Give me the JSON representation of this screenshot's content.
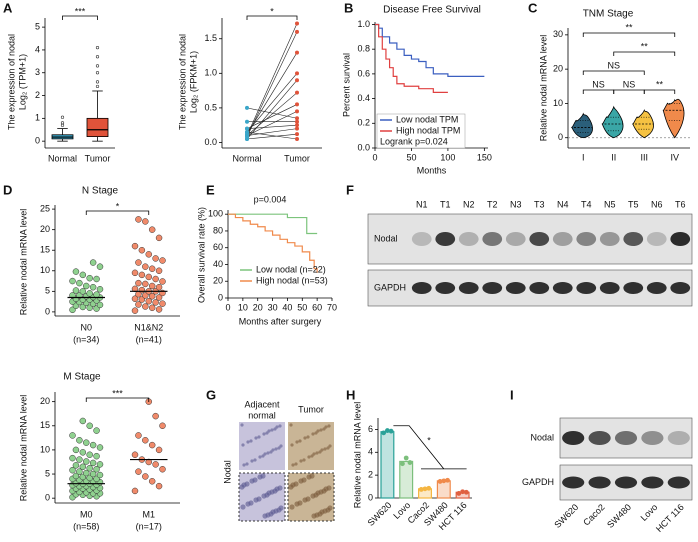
{
  "chart_data": [
    {
      "type": "box",
      "label": "A",
      "ylabel": [
        "The expression of nodal",
        "Log₂ (TPM+1)"
      ],
      "categories": [
        "Normal",
        "Tumor"
      ],
      "colors": [
        "#3aa6c9",
        "#e0533a"
      ],
      "boxes": [
        {
          "min": 0,
          "q1": 0.1,
          "median": 0.18,
          "q3": 0.28,
          "max": 0.55
        },
        {
          "min": 0,
          "q1": 0.2,
          "median": 0.5,
          "q3": 1.0,
          "max": 2.2
        }
      ],
      "outliers": [
        [
          0.7,
          0.8,
          1.05
        ],
        [
          2.4,
          2.6,
          3.0,
          3.3,
          3.7,
          4.1
        ]
      ],
      "ylim": [
        -0.3,
        5.4
      ],
      "yticks": [
        0,
        1,
        2,
        3,
        4,
        5
      ],
      "significance": "***"
    },
    {
      "type": "paired",
      "ylabel": [
        "The expression of nodal",
        "Log₂ (FPKM+1)"
      ],
      "categories": [
        "Normal",
        "Tumor"
      ],
      "colors": [
        "#3aa6c9",
        "#e0533a"
      ],
      "normal": [
        0.1,
        0.08,
        0.12,
        0.15,
        0.05,
        0.1,
        0.2,
        0.5,
        0.3,
        0.1,
        0.05,
        0.15,
        0.2,
        0.1
      ],
      "tumor": [
        1.72,
        1.6,
        1.3,
        1.0,
        0.9,
        0.72,
        0.55,
        0.35,
        0.3,
        0.2,
        0.12,
        0.05,
        0.25,
        0.45
      ],
      "ylim": [
        -0.08,
        1.8
      ],
      "yticks": [
        {
          "value": 0,
          "label": "0.0"
        },
        {
          "value": 0.5,
          "label": "0.5"
        },
        {
          "value": 1,
          "label": "1.0"
        },
        {
          "value": 1.5,
          "label": "1.5"
        }
      ],
      "significance": "*"
    },
    {
      "type": "survival",
      "label": "B",
      "title": "Disease Free Survival",
      "ylabel": "Percent survival",
      "xlabel": "Months",
      "xlim": [
        0,
        155
      ],
      "ylim": [
        0,
        1.02
      ],
      "xticks": [
        0,
        50,
        100,
        150
      ],
      "yticks": [
        {
          "value": 0,
          "label": "0.0"
        },
        {
          "value": 0.2,
          "label": "0.2"
        },
        {
          "value": 0.4,
          "label": "0.4"
        },
        {
          "value": 0.6,
          "label": "0.6"
        },
        {
          "value": 0.8,
          "label": "0.8"
        },
        {
          "value": 1,
          "label": "1.0"
        }
      ],
      "series": [
        {
          "name": "Low nodal TPM",
          "color": "#3b5fc0",
          "x": [
            0,
            5,
            10,
            20,
            30,
            40,
            50,
            60,
            70,
            80,
            100,
            150
          ],
          "values": [
            1,
            0.97,
            0.9,
            0.85,
            0.8,
            0.75,
            0.72,
            0.7,
            0.65,
            0.6,
            0.58,
            0.58
          ]
        },
        {
          "name": "High nodal TPM",
          "color": "#e04040",
          "x": [
            0,
            5,
            10,
            15,
            20,
            25,
            30,
            40,
            60,
            80,
            100
          ],
          "values": [
            1,
            0.9,
            0.8,
            0.72,
            0.65,
            0.58,
            0.52,
            0.5,
            0.48,
            0.45,
            0.45
          ]
        }
      ],
      "annotation": "Logrank p=0.024"
    },
    {
      "type": "violin",
      "label": "C",
      "title": "TNM Stage",
      "ylabel": "Relative nodal mRNA level",
      "categories": [
        "I",
        "II",
        "III",
        "IV"
      ],
      "colors": [
        "#2b5f7a",
        "#3aa6a6",
        "#f5c242",
        "#f08a4b"
      ],
      "stats": [
        {
          "min": 0,
          "q1": 1.5,
          "median": 3,
          "q3": 5,
          "max": 7
        },
        {
          "min": 0,
          "q1": 2,
          "median": 4,
          "q3": 6,
          "max": 9
        },
        {
          "min": 0,
          "q1": 2.5,
          "median": 4,
          "q3": 6,
          "max": 8
        },
        {
          "min": 0,
          "q1": 5,
          "median": 8,
          "q3": 10,
          "max": 11
        }
      ],
      "ylim": [
        -3,
        32
      ],
      "yticks": [
        0,
        10,
        20,
        30
      ],
      "comparisons": [
        {
          "between": [
            0,
            1
          ],
          "label": "NS"
        },
        {
          "between": [
            1,
            2
          ],
          "label": "NS"
        },
        {
          "between": [
            0,
            2
          ],
          "label": "NS"
        },
        {
          "between": [
            2,
            3
          ],
          "label": "**"
        },
        {
          "between": [
            1,
            3
          ],
          "label": "**"
        },
        {
          "between": [
            0,
            3
          ],
          "label": "**"
        }
      ]
    },
    {
      "type": "strip",
      "label": "D",
      "title": "N Stage",
      "ylabel": "Relative nodal mRNA level",
      "categories": [
        "N0",
        "N1&N2"
      ],
      "sublabels": [
        "(n=34)",
        "(n=41)"
      ],
      "colors": [
        "#8fd18f",
        "#f08a6a"
      ],
      "values": [
        [
          0.5,
          0.8,
          1,
          1.2,
          1.5,
          1.7,
          2,
          2.2,
          2.4,
          2.5,
          2.8,
          3,
          3,
          3.2,
          3.5,
          3.6,
          3.8,
          4,
          4,
          4.2,
          4.5,
          5,
          5.2,
          5.5,
          6,
          6.3,
          7,
          7.5,
          8,
          8.2,
          9,
          9.8,
          11,
          12
        ],
        [
          0.3,
          0.6,
          1,
          1.3,
          1.8,
          2,
          2.3,
          2.6,
          3,
          3.2,
          3.5,
          3.8,
          4,
          4.3,
          4.6,
          5,
          5,
          5.3,
          5.6,
          6,
          6.3,
          6.8,
          7,
          7.4,
          8,
          8.5,
          9,
          9.5,
          10,
          10.5,
          11,
          12,
          12.5,
          13,
          14,
          15,
          16,
          18,
          20,
          22,
          22.5
        ]
      ],
      "means": [
        3.5,
        5
      ],
      "ylim": [
        -1,
        26
      ],
      "yticks": [
        0,
        5,
        10,
        15,
        20,
        25
      ],
      "significance": "*"
    },
    {
      "type": "strip",
      "title": "M Stage",
      "ylabel": "Relative nodal mRNA level",
      "categories": [
        "M0",
        "M1"
      ],
      "sublabels": [
        "(n=58)",
        "(n=17)"
      ],
      "colors": [
        "#8fd18f",
        "#f08a6a"
      ],
      "values": [
        [
          0.2,
          0.4,
          0.5,
          0.7,
          0.8,
          1,
          1,
          1.2,
          1.3,
          1.5,
          1.6,
          1.8,
          2,
          2,
          2.1,
          2.3,
          2.5,
          2.5,
          2.7,
          2.8,
          3,
          3,
          3.1,
          3.3,
          3.5,
          3.6,
          3.8,
          4,
          4,
          4.2,
          4.4,
          4.6,
          4.8,
          5,
          5.2,
          5.5,
          5.8,
          6,
          6.2,
          6.5,
          6.8,
          7,
          7.3,
          7.6,
          8,
          8.3,
          8.7,
          9,
          9.5,
          10,
          10.5,
          11,
          11.5,
          12,
          13,
          14,
          15,
          16
        ],
        [
          1.5,
          2.5,
          3.5,
          4.5,
          5.5,
          6,
          7,
          7.5,
          8,
          9,
          10,
          11,
          12,
          13,
          15,
          17,
          20
        ]
      ],
      "means": [
        3,
        8
      ],
      "ylim": [
        -1,
        22
      ],
      "yticks": [
        0,
        5,
        10,
        15,
        20
      ],
      "significance": "***"
    },
    {
      "type": "survival",
      "label": "E",
      "ylabel": "Overall survival rate (%)",
      "xlabel": "Months after surgery",
      "xlim": [
        0,
        70
      ],
      "ylim": [
        0,
        105
      ],
      "xticks": [
        0,
        10,
        20,
        30,
        40,
        50,
        60,
        70
      ],
      "yticks": [
        0,
        20,
        40,
        60,
        80,
        100
      ],
      "series": [
        {
          "name": "Low nodal (n=22)",
          "color": "#7cc47c",
          "x": [
            0,
            40,
            53,
            60
          ],
          "values": [
            100,
            96,
            77,
            77
          ]
        },
        {
          "name": "High nodal (n=53)",
          "color": "#f08a4b",
          "x": [
            0,
            5,
            10,
            15,
            20,
            25,
            30,
            35,
            40,
            45,
            50,
            55,
            58,
            60
          ],
          "values": [
            100,
            96,
            92,
            88,
            85,
            80,
            75,
            70,
            66,
            62,
            55,
            45,
            35,
            30
          ]
        }
      ],
      "annotation": "p=0.004"
    },
    {
      "type": "bar",
      "label": "H",
      "ylabel": "Relative nodal mRNA level",
      "categories": [
        "SW620",
        "Lovo",
        "Caco2",
        "SW480",
        "HCT 116"
      ],
      "colors": [
        "#2aa198",
        "#7cbf7c",
        "#f5b642",
        "#f08a4b",
        "#e06040"
      ],
      "values": [
        5.8,
        3.2,
        0.8,
        1.5,
        0.5
      ],
      "points": [
        [
          5.7,
          5.9,
          5.85
        ],
        [
          3.0,
          3.5,
          3.1
        ],
        [
          0.75,
          0.8,
          0.85
        ],
        [
          1.45,
          1.5,
          1.55
        ],
        [
          0.4,
          0.55,
          0.5
        ]
      ],
      "ylim": [
        0,
        7
      ],
      "yticks": [
        0,
        2,
        4,
        6
      ],
      "significance": "*"
    }
  ],
  "blots": [
    {
      "label": "F",
      "lanes": [
        "N1",
        "T1",
        "N2",
        "T2",
        "N3",
        "T3",
        "N4",
        "T4",
        "N5",
        "T5",
        "N6",
        "T6"
      ],
      "rows": [
        "Nodal",
        "GAPDH"
      ]
    },
    {
      "label": "I",
      "lanes": [
        "SW620",
        "Caco2",
        "SW480",
        "Lovo",
        "HCT 116"
      ],
      "rows": [
        "Nodal",
        "GAPDH"
      ]
    }
  ],
  "histology": {
    "label": "G",
    "columns": [
      [
        "Adjacent",
        "normal"
      ],
      [
        "Tumor"
      ]
    ],
    "row": "Nodal"
  }
}
